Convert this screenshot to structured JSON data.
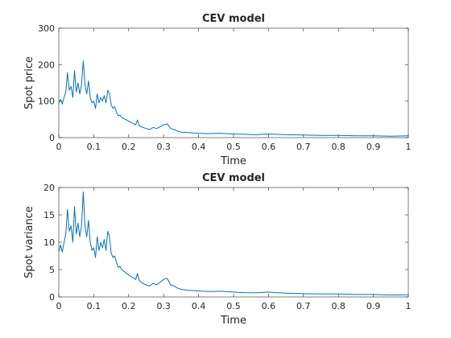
{
  "chart_data": [
    {
      "type": "line",
      "title": "CEV model",
      "xlabel": "Time",
      "ylabel": "Spot price",
      "xlim": [
        0,
        1
      ],
      "ylim": [
        0,
        300
      ],
      "xticks": [
        "0",
        "0.1",
        "0.2",
        "0.3",
        "0.4",
        "0.5",
        "0.6",
        "0.7",
        "0.8",
        "0.9",
        "1"
      ],
      "yticks": [
        "0",
        "100",
        "200",
        "300"
      ],
      "grid": false,
      "line_color": "#0072BD",
      "series": [
        {
          "x": [
            0,
            0.005,
            0.01,
            0.015,
            0.02,
            0.025,
            0.03,
            0.035,
            0.04,
            0.045,
            0.05,
            0.055,
            0.06,
            0.065,
            0.068,
            0.07,
            0.075,
            0.08,
            0.085,
            0.09,
            0.095,
            0.1,
            0.105,
            0.11,
            0.115,
            0.12,
            0.125,
            0.13,
            0.135,
            0.14,
            0.145,
            0.15,
            0.155,
            0.16,
            0.165,
            0.17,
            0.175,
            0.18,
            0.19,
            0.2,
            0.21,
            0.22,
            0.225,
            0.23,
            0.24,
            0.25,
            0.26,
            0.27,
            0.28,
            0.29,
            0.3,
            0.31,
            0.32,
            0.33,
            0.34,
            0.35,
            0.37,
            0.4,
            0.43,
            0.46,
            0.5,
            0.53,
            0.56,
            0.6,
            0.62,
            0.65,
            0.7,
            0.75,
            0.8,
            0.85,
            0.9,
            0.95,
            1
          ],
          "y": [
            95,
            105,
            92,
            110,
            125,
            178,
            130,
            140,
            110,
            183,
            125,
            150,
            120,
            145,
            185,
            210,
            145,
            120,
            155,
            110,
            95,
            100,
            80,
            120,
            95,
            110,
            100,
            115,
            95,
            130,
            120,
            90,
            80,
            85,
            70,
            60,
            62,
            55,
            50,
            45,
            40,
            35,
            48,
            33,
            28,
            25,
            22,
            28,
            25,
            30,
            35,
            38,
            25,
            22,
            18,
            15,
            14,
            12,
            11,
            12,
            10,
            9,
            8,
            10,
            9,
            8,
            7,
            6,
            6,
            5,
            5,
            4,
            5
          ]
        }
      ]
    },
    {
      "type": "line",
      "title": "CEV model",
      "xlabel": "Time",
      "ylabel": "Spot variance",
      "xlim": [
        0,
        1
      ],
      "ylim": [
        0,
        20
      ],
      "xticks": [
        "0",
        "0.1",
        "0.2",
        "0.3",
        "0.4",
        "0.5",
        "0.6",
        "0.7",
        "0.8",
        "0.9",
        "1"
      ],
      "yticks": [
        "0",
        "5",
        "10",
        "15",
        "20"
      ],
      "grid": false,
      "line_color": "#0072BD",
      "series": [
        {
          "x": [
            0,
            0.005,
            0.01,
            0.015,
            0.02,
            0.025,
            0.03,
            0.035,
            0.04,
            0.045,
            0.05,
            0.055,
            0.06,
            0.065,
            0.068,
            0.07,
            0.075,
            0.08,
            0.085,
            0.09,
            0.095,
            0.1,
            0.105,
            0.11,
            0.115,
            0.12,
            0.125,
            0.13,
            0.135,
            0.14,
            0.145,
            0.15,
            0.155,
            0.16,
            0.165,
            0.17,
            0.175,
            0.18,
            0.19,
            0.2,
            0.21,
            0.22,
            0.225,
            0.23,
            0.24,
            0.25,
            0.26,
            0.27,
            0.28,
            0.29,
            0.3,
            0.31,
            0.32,
            0.33,
            0.34,
            0.35,
            0.37,
            0.4,
            0.43,
            0.46,
            0.5,
            0.53,
            0.56,
            0.6,
            0.62,
            0.65,
            0.7,
            0.75,
            0.8,
            0.85,
            0.9,
            0.95,
            1
          ],
          "y": [
            8.3,
            9.5,
            8.2,
            10,
            11.5,
            16,
            12,
            13,
            10,
            16.5,
            11.5,
            13.5,
            11,
            13,
            16.5,
            19.2,
            13,
            11,
            14,
            10,
            8.5,
            9,
            7.2,
            11,
            8.5,
            10,
            9,
            10.5,
            8.5,
            12,
            11,
            8,
            7.2,
            7.5,
            6.3,
            5.4,
            5.6,
            5,
            4.5,
            4,
            3.6,
            3.2,
            4.3,
            3,
            2.5,
            2.2,
            2,
            2.5,
            2.2,
            2.7,
            3.2,
            3.4,
            2.2,
            2,
            1.6,
            1.4,
            1.2,
            1.1,
            1,
            1.05,
            0.9,
            0.8,
            0.75,
            0.9,
            0.8,
            0.7,
            0.6,
            0.55,
            0.55,
            0.45,
            0.45,
            0.35,
            0.4
          ]
        }
      ]
    }
  ]
}
